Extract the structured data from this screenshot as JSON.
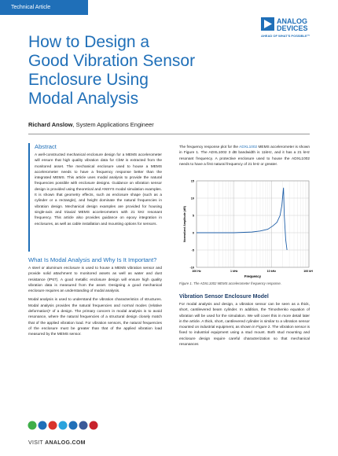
{
  "header": {
    "tag": "Technical Article",
    "logo_line1": "ANALOG",
    "logo_line2": "DEVICES",
    "tagline": "AHEAD OF WHAT'S POSSIBLE™"
  },
  "title_lines": [
    "How to Design a",
    "Good Vibration Sensor",
    "Enclosure Using",
    "Modal Analysis"
  ],
  "author": {
    "name": "Richard Anslow",
    "affiliation": ", System Applications Engineer"
  },
  "abstract": {
    "heading": "Abstract",
    "text": "A well-constructed mechanical enclosure design for a MEMS accelerometer will ensure that high quality vibration data for CbM is extracted from the monitored asset. The mechanical enclosure used to house a MEMS accelerometer needs to have a frequency response better than the integrated MEMS. This article uses modal analysis to provide the natural frequencies possible with enclosure designs. Guidance on vibration sensor design is provided using theoretical and ANSYS modal simulation examples. It is shown that geometry effects, such as enclosure shape (such as a cylinder or a rectangle), and height dominate the natural frequencies in vibration design. Mechanical design examples are provided for housing single-axis and triaxial MEMS accelerometers with 21 kHz resonant frequency. This article also provides guidance on epoxy integration in enclosures, as well as cable installation and mounting options for sensors."
  },
  "section1": {
    "heading": "What Is Modal Analysis and Why Is It Important?",
    "paragraphs": [
      "A steel or aluminum enclosure is used to house a MEMS vibration sensor and provide solid attachment to monitored assets as well as water and dust resistance (IP67). A good metallic enclosure design will ensure high quality vibration data is measured from the asset. Designing a good mechanical enclosure requires an understanding of modal analysis.",
      "Modal analysis is used to understand the vibration characteristics of structures. Modal analysis provides the natural frequencies and normal modes (relative deformation)¹ of a design. The primary concern in modal analysis is to avoid resonance, where the natural frequencies of a structural design closely match that of the applied vibration load. For vibration sensors, the natural frequencies of the enclosure must be greater than that of the applied vibration load measured by the MEMS sensor."
    ]
  },
  "intro": [
    {
      "text": "The frequency response plot for the ",
      "link": false
    },
    {
      "text": "ADXL1002",
      "link": true
    },
    {
      "text": " MEMS accelerometer is shown in Figure 1. The ADXL1002 3 dB bandwidth is 11kHz, and it has a 21 kHz resonant frequency. A protective enclosure used to house the ADXL1002 needs to have a first natural frequency of 21 kHz or greater.",
      "link": false
    }
  ],
  "chart_data": {
    "type": "line",
    "x_label": "Frequency",
    "y_label": "Normalized Amplitude (dB)",
    "caption": "Figure 1. The ADXL1002 MEMS accelerometer frequency response.",
    "x": [
      100,
      1000,
      3000,
      5000,
      8000,
      11000,
      14000,
      17000,
      19000,
      20500,
      21000,
      22000,
      24000,
      26000
    ],
    "values": [
      0,
      0,
      0.2,
      0.5,
      1,
      2,
      3,
      5,
      8,
      12,
      13,
      5,
      -2,
      -5
    ],
    "color": "#1f5fa8",
    "x_scale": "log",
    "grid": true,
    "xlim": [
      100,
      100000
    ],
    "xticks": [
      {
        "value": 100,
        "label": "100 Hz"
      },
      {
        "value": 1000,
        "label": "1 kHz"
      },
      {
        "value": 10000,
        "label": "10 kHz"
      },
      {
        "value": 100000,
        "label": "100 kHz"
      }
    ],
    "ylim": [
      -10,
      15
    ],
    "yticks": [
      -10,
      -5,
      0,
      5,
      10,
      15
    ]
  },
  "section2": {
    "heading": "Vibration Sensor Enclosure Model",
    "paragraphs": [
      "For modal analysis and design, a vibration sensor can be seen as a thick, short, cantilevered beam cylinder. In addition, the Timoshenko equation of vibration will be used for the simulation. We will cover this in more detail later in the article. A thick, short, cantilevered cylinder is similar to a vibration sensor mounted on industrial equipment, as shown in Figure 2. The vibration sensor is fixed to industrial equipment using a stud mount. Both stud mounting and enclosure design require careful characterization so that mechanical resonances"
    ]
  },
  "footer": {
    "visit": "VISIT ",
    "url": "ANALOG.COM"
  }
}
